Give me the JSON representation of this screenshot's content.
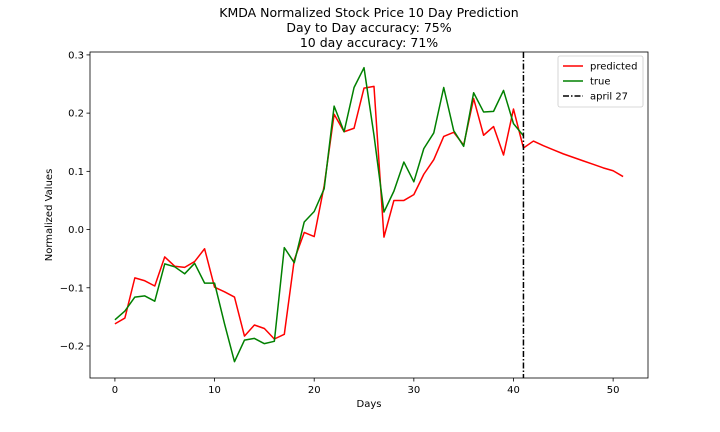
{
  "chart_data": {
    "type": "line",
    "title": [
      "KMDA Normalized Stock Price 10 Day Prediction",
      "Day to Day accuracy: 75%",
      "10 day accuracy: 71%"
    ],
    "xlabel": "Days",
    "ylabel": "Normalized Values",
    "xlim": [
      -2.5,
      53.5
    ],
    "ylim": [
      -0.255,
      0.305
    ],
    "xticks": [
      0,
      10,
      20,
      30,
      40,
      50
    ],
    "yticks": [
      -0.2,
      -0.1,
      0.0,
      0.1,
      0.2,
      0.3
    ],
    "ytick_labels": [
      "−0.2",
      "−0.1",
      "0.0",
      "0.1",
      "0.2",
      "0.3"
    ],
    "legend_position": "top-right",
    "series": [
      {
        "name": "predicted",
        "color": "#ff0000",
        "x": [
          0,
          1,
          2,
          3,
          4,
          5,
          6,
          7,
          8,
          9,
          10,
          11,
          12,
          13,
          14,
          15,
          16,
          17,
          18,
          19,
          20,
          21,
          22,
          23,
          24,
          25,
          26,
          27,
          28,
          29,
          30,
          31,
          32,
          33,
          34,
          35,
          36,
          37,
          38,
          39,
          40,
          41,
          42,
          43,
          44,
          45,
          46,
          47,
          48,
          49,
          50,
          51
        ],
        "values": [
          -0.162,
          -0.152,
          -0.083,
          -0.088,
          -0.097,
          -0.047,
          -0.063,
          -0.065,
          -0.055,
          -0.033,
          -0.099,
          -0.107,
          -0.116,
          -0.183,
          -0.164,
          -0.17,
          -0.188,
          -0.18,
          -0.052,
          -0.005,
          -0.012,
          0.075,
          0.198,
          0.168,
          0.174,
          0.243,
          0.246,
          -0.013,
          0.05,
          0.05,
          0.06,
          0.095,
          0.12,
          0.16,
          0.167,
          0.145,
          0.225,
          0.162,
          0.177,
          0.128,
          0.207,
          0.14,
          0.152,
          0.144,
          0.137,
          0.13,
          0.124,
          0.118,
          0.112,
          0.106,
          0.101,
          0.091
        ]
      },
      {
        "name": "true",
        "color": "#008000",
        "x": [
          0,
          1,
          2,
          3,
          4,
          5,
          6,
          7,
          8,
          9,
          10,
          11,
          12,
          13,
          14,
          15,
          16,
          17,
          18,
          19,
          20,
          21,
          22,
          23,
          24,
          25,
          26,
          27,
          28,
          29,
          30,
          31,
          32,
          33,
          34,
          35,
          36,
          37,
          38,
          39,
          40,
          41
        ],
        "values": [
          -0.155,
          -0.14,
          -0.116,
          -0.114,
          -0.123,
          -0.059,
          -0.064,
          -0.076,
          -0.058,
          -0.092,
          -0.092,
          -0.162,
          -0.227,
          -0.19,
          -0.187,
          -0.196,
          -0.192,
          -0.031,
          -0.057,
          0.013,
          0.031,
          0.07,
          0.212,
          0.168,
          0.244,
          0.278,
          0.162,
          0.03,
          0.066,
          0.116,
          0.082,
          0.139,
          0.166,
          0.244,
          0.17,
          0.143,
          0.235,
          0.202,
          0.203,
          0.239,
          0.182,
          0.161
        ]
      }
    ],
    "vline": {
      "name": "april 27",
      "x": 41,
      "color": "#000000"
    }
  }
}
